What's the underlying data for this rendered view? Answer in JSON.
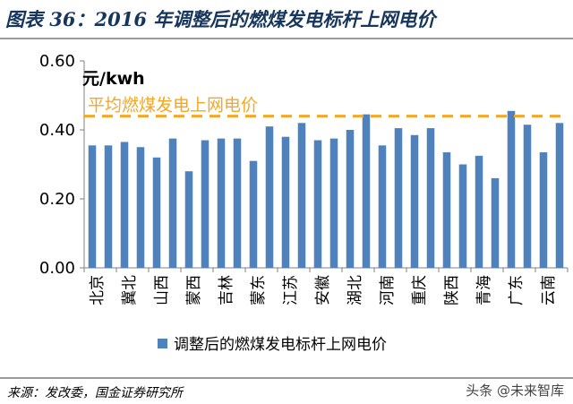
{
  "title": "图表 36：2016 年调整后的燃煤发电标杆上网电价",
  "source": "来源：发改委，国金证券研究所",
  "watermark": "头条 @未来智库",
  "colors": {
    "bar": "#4f81bd",
    "average_line": "#f6a623",
    "title": "#17365d"
  },
  "chart_data": {
    "type": "bar",
    "categories": [
      "北京",
      "冀北",
      "山西",
      "蒙西",
      "吉林",
      "蒙东",
      "江苏",
      "安徽",
      "湖北",
      "河南",
      "重庆",
      "陕西",
      "青海",
      "广东",
      "云南"
    ],
    "x": [
      "北京",
      "",
      "冀北",
      "",
      "山西",
      "",
      "蒙西",
      "",
      "吉林",
      "",
      "蒙东",
      "",
      "江苏",
      "",
      "安徽",
      "",
      "湖北",
      "",
      "河南",
      "",
      "重庆",
      "",
      "陕西",
      "",
      "青海",
      "",
      "广东",
      "",
      "云南",
      ""
    ],
    "series": [
      {
        "name": "调整后的燃煤发电标杆上网电价",
        "values": [
          0.355,
          0.355,
          0.365,
          0.35,
          0.32,
          0.375,
          0.28,
          0.37,
          0.375,
          0.375,
          0.31,
          0.41,
          0.38,
          0.42,
          0.37,
          0.375,
          0.4,
          0.445,
          0.355,
          0.405,
          0.385,
          0.405,
          0.335,
          0.3,
          0.325,
          0.26,
          0.455,
          0.415,
          0.335,
          0.42
        ]
      }
    ],
    "average_line": {
      "label": "平均燃煤发电上网电价",
      "value": 0.44
    },
    "ylabel": "元/kwh",
    "ylim": [
      0,
      0.6
    ],
    "yticks": [
      "0.00",
      "0.20",
      "0.40",
      "0.60"
    ],
    "legend_placement": "bottom-left",
    "grid": false
  }
}
